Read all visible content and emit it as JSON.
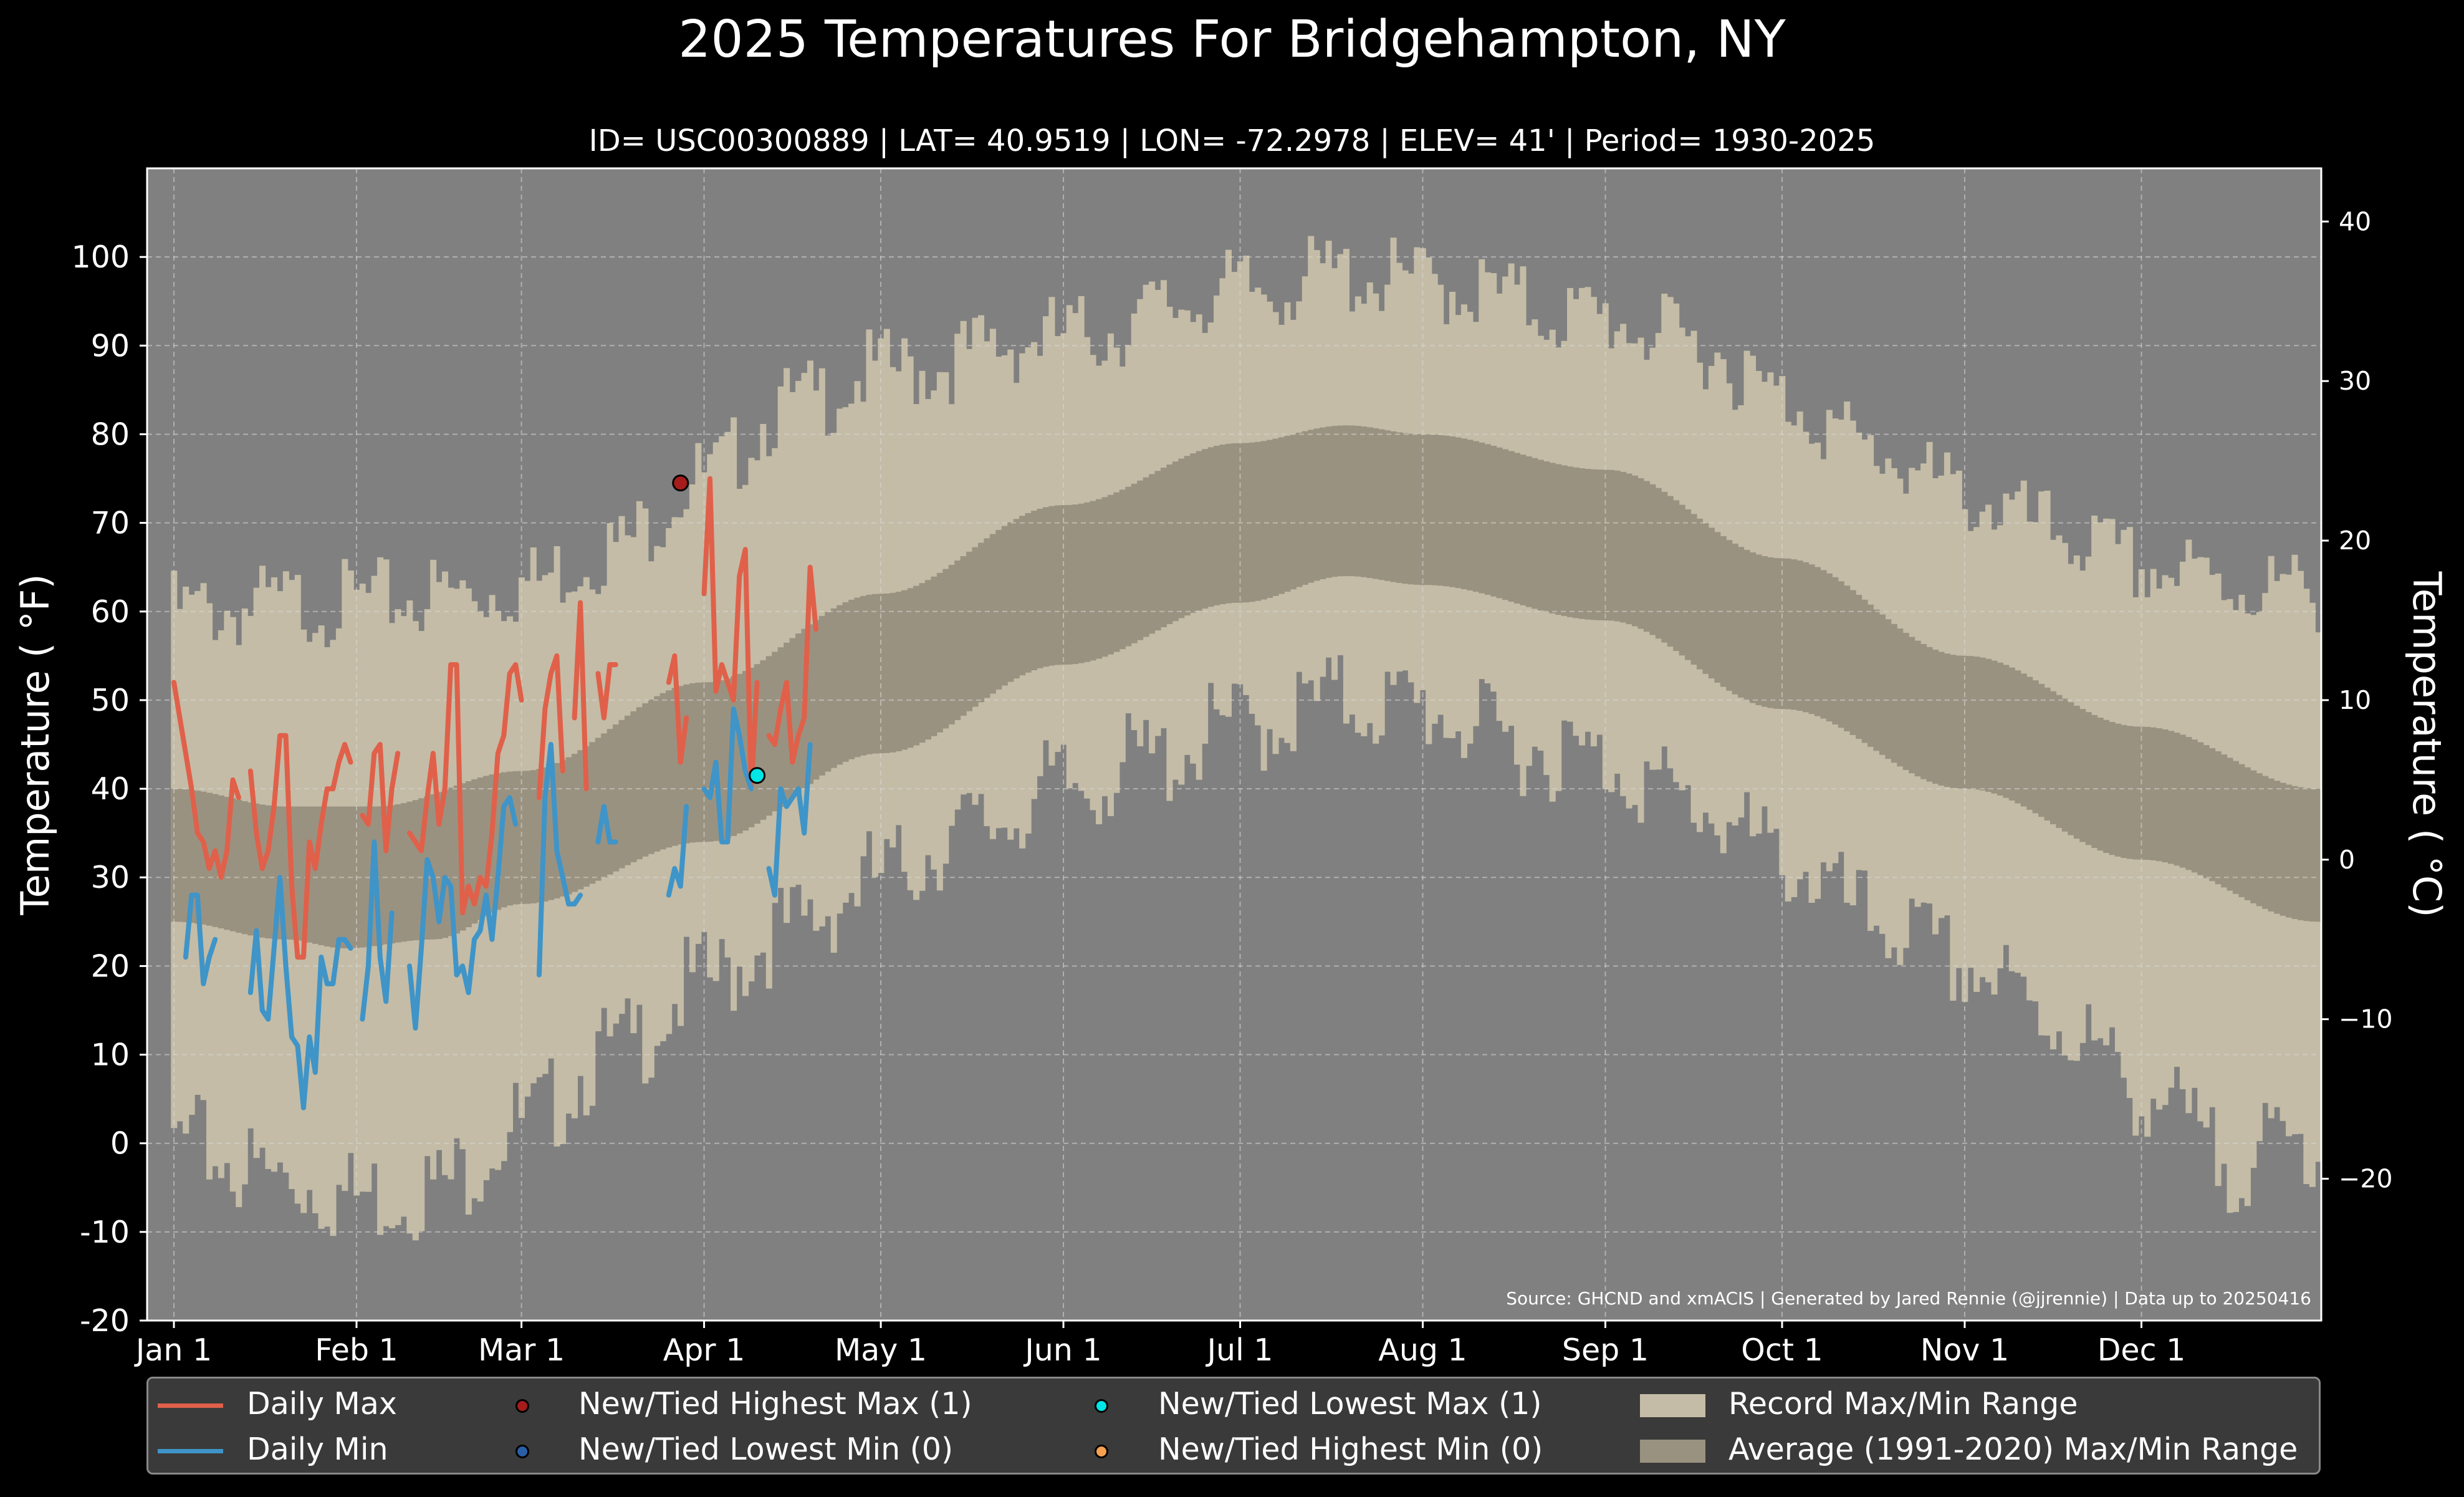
{
  "colors": {
    "background": "#000000",
    "plot_bg": "#808080",
    "record_range": "#c4bca6",
    "average_range": "#9a9280",
    "daily_max": "#e0604a",
    "daily_min": "#3f94c8",
    "highest_max": "#a61c1c",
    "lowest_min": "#2a5fa8",
    "lowest_max": "#00e5e5",
    "highest_min": "#f5a050"
  },
  "chart_data": {
    "type": "line",
    "title": "2025 Temperatures For Bridgehampton, NY",
    "subtitle": "ID= USC00300889 | LAT= 40.9519 | LON= -72.2978 | ELEV= 41' | Period= 1930-2025",
    "ylabel_left": "Temperature ( $^\\circ$F)",
    "ylabel_left_display": "Temperature ( °F)",
    "ylabel_right_display": "Temperature ( °C)",
    "ylim": [
      -20,
      110
    ],
    "y_ticks_f": [
      "-20",
      "-10",
      "0",
      "10",
      "20",
      "30",
      "40",
      "50",
      "60",
      "70",
      "80",
      "90",
      "100"
    ],
    "y_ticks_c": [
      "−20",
      "−10",
      "0",
      "10",
      "20",
      "30",
      "40"
    ],
    "x_ticks": [
      "Jan 1",
      "Feb 1",
      "Mar 1",
      "Apr 1",
      "May 1",
      "Jun 1",
      "Jul 1",
      "Aug 1",
      "Sep 1",
      "Oct 1",
      "Nov 1",
      "Dec 1"
    ],
    "x_tick_days": [
      1,
      32,
      60,
      91,
      121,
      152,
      182,
      213,
      244,
      274,
      305,
      335
    ],
    "days_in_year": 365,
    "grid": true,
    "source": "Source: GHCND and xmACIS | Generated by Jared Rennie (@jjrennie) | Data up to 20250416",
    "average_range": {
      "max_knots": [
        [
          1,
          40
        ],
        [
          20,
          38
        ],
        [
          35,
          38
        ],
        [
          60,
          42
        ],
        [
          91,
          52
        ],
        [
          121,
          62
        ],
        [
          152,
          72
        ],
        [
          182,
          79
        ],
        [
          200,
          81
        ],
        [
          213,
          80
        ],
        [
          244,
          76
        ],
        [
          274,
          66
        ],
        [
          305,
          55
        ],
        [
          335,
          47
        ],
        [
          365,
          40
        ]
      ],
      "min_knots": [
        [
          1,
          25
        ],
        [
          20,
          23
        ],
        [
          30,
          22
        ],
        [
          45,
          23
        ],
        [
          60,
          27
        ],
        [
          91,
          34
        ],
        [
          121,
          44
        ],
        [
          152,
          54
        ],
        [
          182,
          61
        ],
        [
          200,
          64
        ],
        [
          213,
          63
        ],
        [
          244,
          59
        ],
        [
          274,
          49
        ],
        [
          305,
          40
        ],
        [
          335,
          32
        ],
        [
          365,
          25
        ]
      ]
    },
    "record_range": {
      "max_knots": [
        [
          1,
          60
        ],
        [
          30,
          61
        ],
        [
          50,
          62
        ],
        [
          60,
          63
        ],
        [
          75,
          67
        ],
        [
          91,
          75
        ],
        [
          105,
          83
        ],
        [
          121,
          87
        ],
        [
          152,
          91
        ],
        [
          182,
          96
        ],
        [
          200,
          98
        ],
        [
          213,
          97
        ],
        [
          244,
          93
        ],
        [
          260,
          90
        ],
        [
          274,
          84
        ],
        [
          290,
          78
        ],
        [
          305,
          73
        ],
        [
          320,
          69
        ],
        [
          335,
          65
        ],
        [
          350,
          63
        ],
        [
          365,
          62
        ]
      ],
      "min_knots": [
        [
          1,
          0
        ],
        [
          20,
          -4
        ],
        [
          32,
          -6
        ],
        [
          45,
          -5
        ],
        [
          60,
          2
        ],
        [
          75,
          10
        ],
        [
          91,
          18
        ],
        [
          105,
          24
        ],
        [
          121,
          30
        ],
        [
          135,
          35
        ],
        [
          152,
          40
        ],
        [
          166,
          43
        ],
        [
          182,
          47
        ],
        [
          200,
          50
        ],
        [
          213,
          49
        ],
        [
          230,
          45
        ],
        [
          244,
          43
        ],
        [
          260,
          38
        ],
        [
          274,
          32
        ],
        [
          290,
          25
        ],
        [
          305,
          20
        ],
        [
          320,
          14
        ],
        [
          335,
          6
        ],
        [
          350,
          -2
        ],
        [
          365,
          0
        ]
      ]
    },
    "series": [
      {
        "name": "Daily Max",
        "start_day": 1,
        "values": [
          52,
          48,
          44,
          40,
          35,
          34,
          31,
          33,
          30,
          33,
          41,
          39,
          null,
          42,
          35,
          31,
          33,
          38,
          46,
          46,
          29,
          21,
          21,
          34,
          31,
          36,
          40,
          40,
          43,
          45,
          43,
          null,
          37,
          36,
          44,
          45,
          33,
          40,
          44,
          null,
          35,
          34,
          33,
          39,
          44,
          36,
          40,
          54,
          54,
          26,
          29,
          27,
          30,
          29,
          35,
          44,
          46,
          53,
          54,
          50,
          null,
          null,
          39,
          49,
          53,
          55,
          42,
          null,
          48,
          61,
          40,
          null,
          53,
          48,
          54,
          54,
          null,
          null,
          null,
          null,
          null,
          null,
          null,
          null,
          52,
          55,
          43,
          48,
          null,
          null,
          62,
          75,
          51,
          54,
          52,
          50,
          64,
          67,
          40,
          52,
          null,
          46,
          45,
          49,
          52,
          43,
          46,
          48,
          65,
          58
        ]
      },
      {
        "name": "Daily Min",
        "start_day": 1,
        "values": [
          null,
          null,
          21,
          28,
          28,
          18,
          21,
          23,
          null,
          null,
          null,
          null,
          null,
          17,
          24,
          15,
          14,
          22,
          30,
          20,
          12,
          11,
          4,
          12,
          8,
          21,
          18,
          18,
          23,
          23,
          22,
          null,
          14,
          20,
          34,
          21,
          16,
          26,
          null,
          null,
          20,
          13,
          22,
          32,
          30,
          25,
          30,
          29,
          19,
          20,
          17,
          23,
          24,
          28,
          23,
          30,
          38,
          39,
          36,
          null,
          null,
          null,
          19,
          39,
          45,
          33,
          30,
          27,
          27,
          28,
          null,
          null,
          34,
          38,
          34,
          34,
          null,
          null,
          null,
          null,
          null,
          null,
          null,
          null,
          28,
          31,
          29,
          38,
          null,
          null,
          40,
          39,
          43,
          34,
          34,
          49,
          46,
          42,
          40,
          null,
          null,
          31,
          28,
          40,
          38,
          39,
          40,
          35,
          45,
          null
        ]
      }
    ],
    "markers": [
      {
        "name": "New/Tied Highest Max (1)",
        "day": 87,
        "value": 74.5
      },
      {
        "name": "New/Tied Lowest Max (1)",
        "day": 100,
        "value": 41.5
      }
    ],
    "legend": [
      "Daily Max",
      "Daily Min",
      "New/Tied Highest Max (1)",
      "New/Tied Lowest Min (0)",
      "New/Tied Lowest Max (1)",
      "New/Tied Highest Min (0)",
      "Record Max/Min Range",
      "Average (1991-2020) Max/Min Range"
    ]
  }
}
